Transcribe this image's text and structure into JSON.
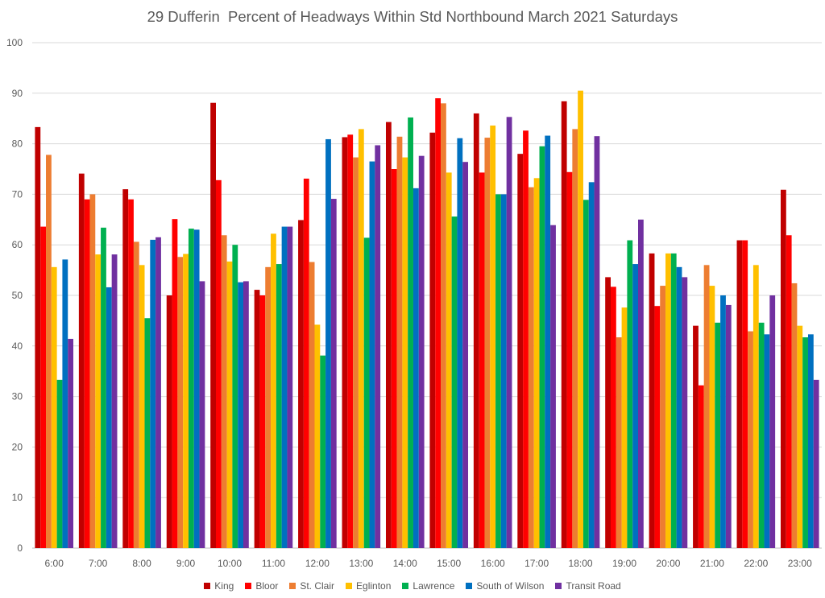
{
  "chart_data": {
    "type": "bar",
    "title": "29 Dufferin  Percent of Headways Within Std Northbound March 2021 Saturdays",
    "xlabel": "",
    "ylabel": "",
    "ylim": [
      0,
      100
    ],
    "yticks": [
      0,
      10,
      20,
      30,
      40,
      50,
      60,
      70,
      80,
      90,
      100
    ],
    "grid": "horizontal",
    "legend_position": "bottom",
    "categories": [
      "6:00",
      "7:00",
      "8:00",
      "9:00",
      "10:00",
      "11:00",
      "12:00",
      "13:00",
      "14:00",
      "15:00",
      "16:00",
      "17:00",
      "18:00",
      "19:00",
      "20:00",
      "21:00",
      "22:00",
      "23:00"
    ],
    "series": [
      {
        "name": "King",
        "color": "#C00000",
        "values": [
          83.3,
          74.1,
          71.0,
          50.0,
          88.1,
          51.1,
          64.9,
          81.3,
          84.3,
          82.2,
          86.0,
          78.0,
          88.4,
          53.6,
          58.3,
          44.0,
          60.9,
          70.9
        ]
      },
      {
        "name": "Bloor",
        "color": "#FF0000",
        "values": [
          63.6,
          69.0,
          69.0,
          65.1,
          72.8,
          50.0,
          73.1,
          81.8,
          75.0,
          89.0,
          74.3,
          82.6,
          74.4,
          51.7,
          47.9,
          32.2,
          60.9,
          61.9
        ]
      },
      {
        "name": "St. Clair",
        "color": "#ED7D31",
        "values": [
          77.8,
          70.0,
          60.6,
          57.6,
          61.9,
          55.6,
          56.6,
          77.3,
          81.4,
          88.0,
          81.2,
          71.4,
          82.9,
          41.7,
          51.9,
          56.0,
          42.9,
          52.4
        ]
      },
      {
        "name": "Eglinton",
        "color": "#FFC000",
        "values": [
          55.6,
          58.1,
          56.0,
          58.2,
          56.7,
          62.2,
          44.2,
          82.9,
          77.3,
          74.3,
          83.6,
          73.2,
          90.5,
          47.6,
          58.3,
          51.9,
          56.0,
          44.0
        ]
      },
      {
        "name": "Lawrence",
        "color": "#00B050",
        "values": [
          33.3,
          63.4,
          45.5,
          63.2,
          60.0,
          56.2,
          38.1,
          61.4,
          85.2,
          65.6,
          70.0,
          79.5,
          68.9,
          60.9,
          58.3,
          44.6,
          44.6,
          41.7
        ]
      },
      {
        "name": "South of Wilson",
        "color": "#0070C0",
        "values": [
          57.1,
          51.6,
          61.0,
          63.0,
          52.6,
          63.6,
          80.9,
          76.5,
          71.2,
          81.1,
          70.0,
          81.6,
          72.4,
          56.2,
          55.6,
          50.0,
          42.3,
          42.3
        ]
      },
      {
        "name": "Transit Road",
        "color": "#7030A0",
        "values": [
          41.4,
          58.1,
          61.5,
          52.8,
          52.8,
          63.6,
          69.1,
          79.7,
          77.6,
          76.4,
          85.3,
          63.9,
          81.5,
          65.0,
          53.6,
          48.1,
          50.0,
          33.3
        ]
      }
    ]
  }
}
